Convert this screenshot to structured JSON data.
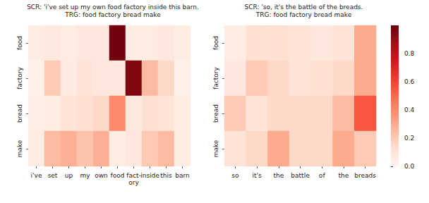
{
  "chart_data": [
    {
      "type": "heatmap",
      "title": "SCR: 'i've set up my own food factory inside this barn.",
      "subtitle": "TRG: food factory bread make",
      "x_categories": [
        "i've",
        "set",
        "up",
        "my",
        "own",
        "food",
        "fact-\nory",
        "inside",
        "this",
        "barn"
      ],
      "y_categories": [
        "food",
        "factory",
        "bread",
        "make"
      ],
      "cells": [
        [
          0.05,
          0.07,
          0.05,
          0.08,
          0.08,
          0.98,
          0.05,
          0.05,
          0.08,
          0.05
        ],
        [
          0.03,
          0.2,
          0.06,
          0.1,
          0.08,
          0.08,
          0.95,
          0.25,
          0.15,
          0.03
        ],
        [
          0.04,
          0.05,
          0.1,
          0.12,
          0.15,
          0.4,
          0.07,
          0.12,
          0.1,
          0.05
        ],
        [
          0.05,
          0.25,
          0.28,
          0.22,
          0.28,
          0.05,
          0.08,
          0.2,
          0.25,
          0.05
        ]
      ]
    },
    {
      "type": "heatmap",
      "title": "SCR: 'so, it's the battle of the breads.",
      "subtitle": "TRG: food factory bread make",
      "x_categories": [
        "so",
        "it's",
        "the",
        "battle",
        "of",
        "the",
        "breads"
      ],
      "y_categories": [
        "food",
        "factory",
        "bread",
        "make"
      ],
      "cells": [
        [
          0.05,
          0.12,
          0.12,
          0.1,
          0.08,
          0.1,
          0.3
        ],
        [
          0.08,
          0.2,
          0.15,
          0.1,
          0.12,
          0.15,
          0.3
        ],
        [
          0.2,
          0.1,
          0.15,
          0.15,
          0.15,
          0.25,
          0.55
        ],
        [
          0.1,
          0.15,
          0.3,
          0.15,
          0.15,
          0.3,
          0.2
        ]
      ],
      "colorbar": {
        "range": [
          0,
          1
        ],
        "ticks": [
          {
            "value": 0,
            "label": "0.0"
          },
          0.2,
          0.4,
          0.6,
          0.8
        ]
      }
    }
  ]
}
